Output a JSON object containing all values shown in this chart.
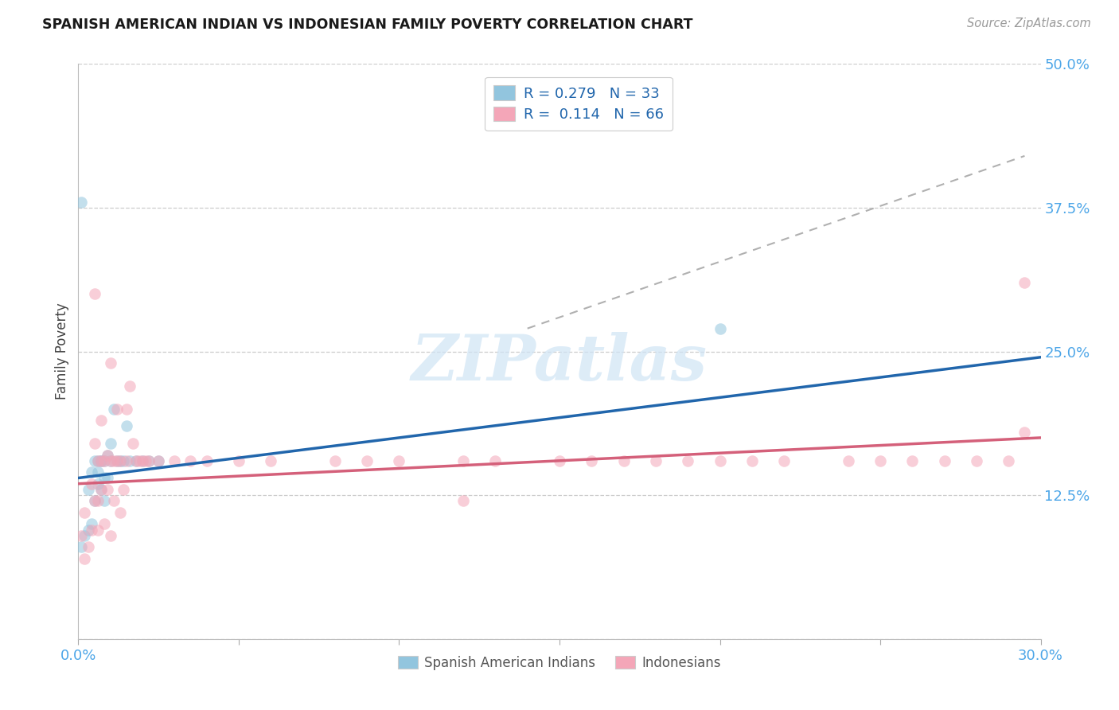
{
  "title": "SPANISH AMERICAN INDIAN VS INDONESIAN FAMILY POVERTY CORRELATION CHART",
  "source": "Source: ZipAtlas.com",
  "ylabel": "Family Poverty",
  "xlim": [
    0.0,
    0.3
  ],
  "ylim": [
    0.0,
    0.5
  ],
  "yticks": [
    0.0,
    0.125,
    0.25,
    0.375,
    0.5
  ],
  "ytick_labels": [
    "",
    "12.5%",
    "25.0%",
    "37.5%",
    "50.0%"
  ],
  "xticks": [
    0.0,
    0.05,
    0.1,
    0.15,
    0.2,
    0.25,
    0.3
  ],
  "xtick_labels": [
    "0.0%",
    "",
    "",
    "",
    "",
    "",
    "30.0%"
  ],
  "color_blue": "#92c5de",
  "color_pink": "#f4a6b8",
  "color_blue_line": "#2166ac",
  "color_pink_line": "#d4607a",
  "color_dashed": "#b0b0b0",
  "color_axis_text": "#4da6e8",
  "watermark_text": "ZIPatlas",
  "watermark_color": "#cfe4f5",
  "legend_label1": "R = 0.279   N = 33",
  "legend_label2": "R =  0.114   N = 66",
  "bottom_legend1": "Spanish American Indians",
  "bottom_legend2": "Indonesians",
  "sp_x": [
    0.001,
    0.002,
    0.003,
    0.003,
    0.004,
    0.004,
    0.005,
    0.005,
    0.006,
    0.006,
    0.006,
    0.007,
    0.007,
    0.007,
    0.008,
    0.008,
    0.008,
    0.009,
    0.009,
    0.01,
    0.01,
    0.011,
    0.012,
    0.013,
    0.014,
    0.015,
    0.016,
    0.018,
    0.02,
    0.022,
    0.025,
    0.2,
    0.001
  ],
  "sp_y": [
    0.08,
    0.09,
    0.095,
    0.13,
    0.1,
    0.145,
    0.12,
    0.155,
    0.145,
    0.135,
    0.155,
    0.155,
    0.13,
    0.155,
    0.14,
    0.155,
    0.12,
    0.16,
    0.14,
    0.17,
    0.155,
    0.2,
    0.155,
    0.155,
    0.155,
    0.185,
    0.155,
    0.155,
    0.155,
    0.155,
    0.155,
    0.27,
    0.38
  ],
  "idn_x": [
    0.001,
    0.002,
    0.002,
    0.003,
    0.004,
    0.004,
    0.005,
    0.005,
    0.006,
    0.006,
    0.006,
    0.007,
    0.007,
    0.007,
    0.008,
    0.008,
    0.009,
    0.009,
    0.01,
    0.01,
    0.011,
    0.011,
    0.012,
    0.012,
    0.013,
    0.013,
    0.014,
    0.015,
    0.015,
    0.016,
    0.017,
    0.018,
    0.019,
    0.02,
    0.021,
    0.022,
    0.025,
    0.03,
    0.035,
    0.04,
    0.05,
    0.06,
    0.08,
    0.09,
    0.1,
    0.12,
    0.13,
    0.15,
    0.16,
    0.17,
    0.18,
    0.19,
    0.2,
    0.21,
    0.22,
    0.24,
    0.25,
    0.26,
    0.27,
    0.28,
    0.29,
    0.295,
    0.005,
    0.01,
    0.12,
    0.295
  ],
  "idn_y": [
    0.09,
    0.11,
    0.07,
    0.08,
    0.095,
    0.135,
    0.12,
    0.17,
    0.095,
    0.155,
    0.12,
    0.13,
    0.19,
    0.155,
    0.1,
    0.155,
    0.13,
    0.16,
    0.09,
    0.155,
    0.12,
    0.155,
    0.155,
    0.2,
    0.11,
    0.155,
    0.13,
    0.2,
    0.155,
    0.22,
    0.17,
    0.155,
    0.155,
    0.155,
    0.155,
    0.155,
    0.155,
    0.155,
    0.155,
    0.155,
    0.155,
    0.155,
    0.155,
    0.155,
    0.155,
    0.155,
    0.155,
    0.155,
    0.155,
    0.155,
    0.155,
    0.155,
    0.155,
    0.155,
    0.155,
    0.155,
    0.155,
    0.155,
    0.155,
    0.155,
    0.155,
    0.18,
    0.3,
    0.24,
    0.12,
    0.31
  ],
  "blue_line_x": [
    0.0,
    0.3
  ],
  "blue_line_y": [
    0.14,
    0.245
  ],
  "pink_line_x": [
    0.0,
    0.3
  ],
  "pink_line_y": [
    0.135,
    0.175
  ],
  "dashed_line_x": [
    0.14,
    0.295
  ],
  "dashed_line_y": [
    0.27,
    0.42
  ]
}
